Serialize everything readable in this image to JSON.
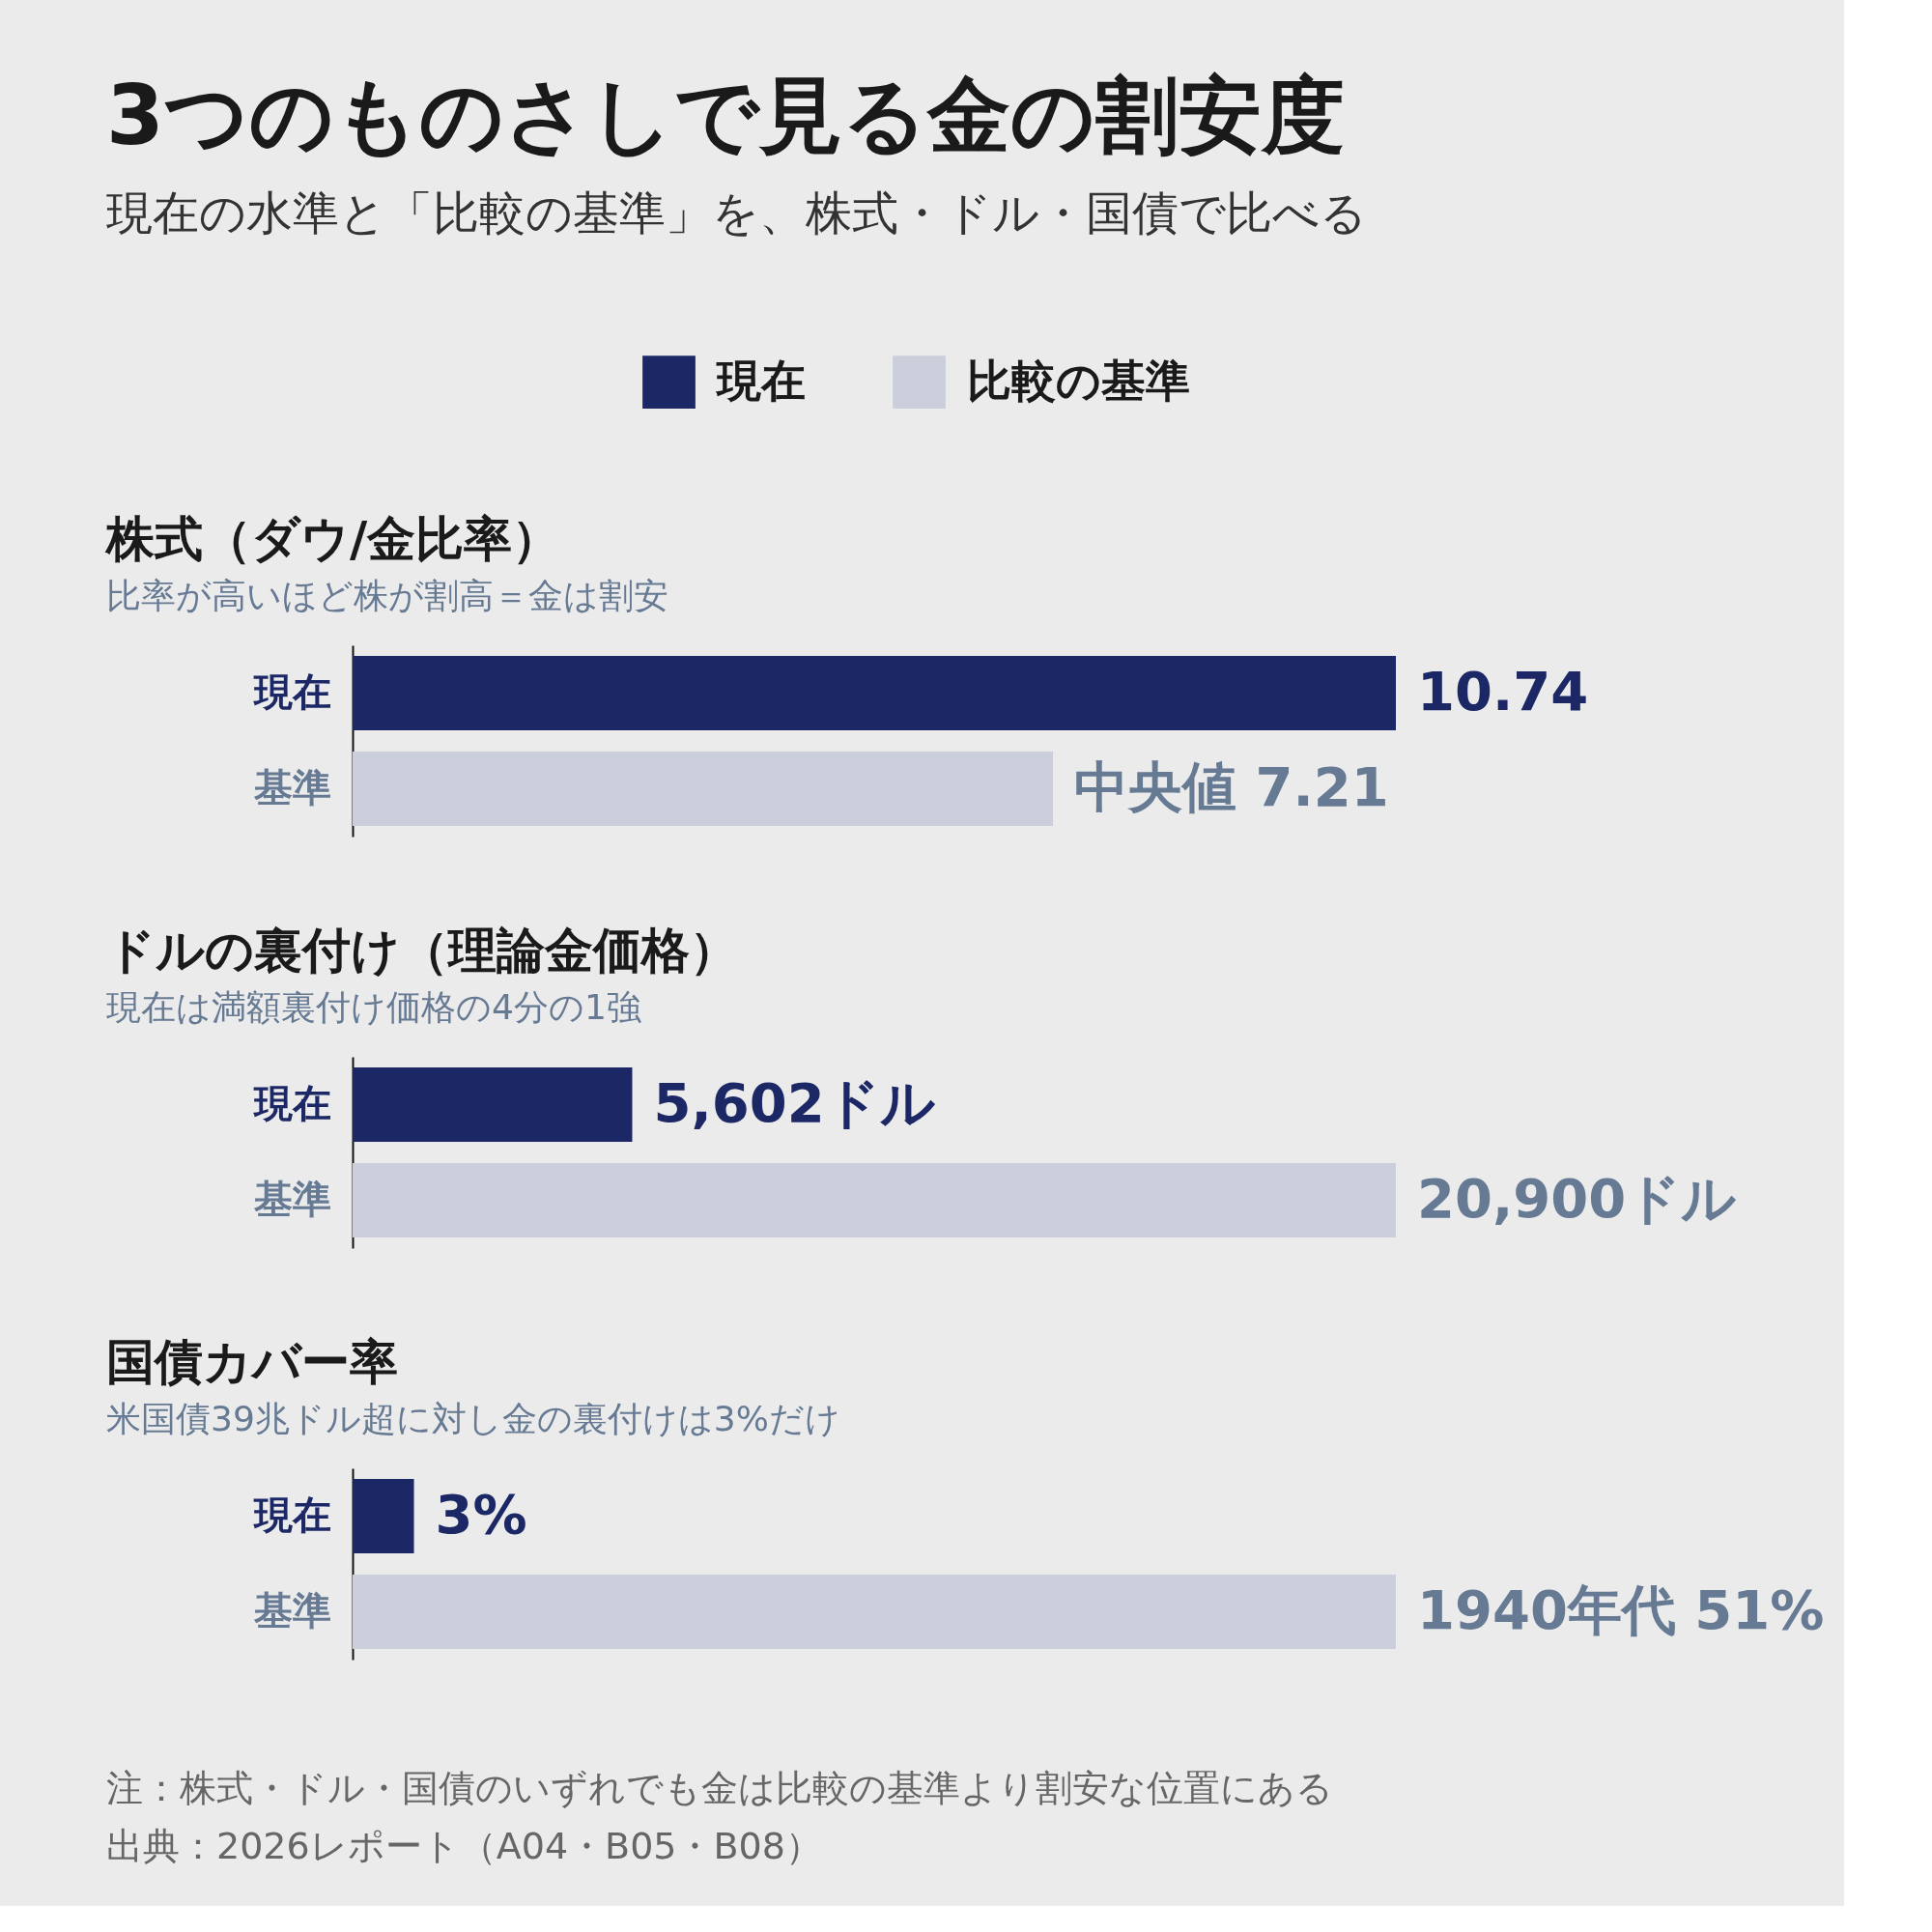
{
  "chart_data": [
    {
      "type": "other",
      "title": "3つのものさしで見る金の割安度",
      "subtitle": "現在の水準と「比較の基準」を、株式・ドル・国債で比べる"
    },
    {
      "type": "bar",
      "orientation": "horizontal",
      "title": "株式（ダウ/金比率）",
      "subtitle": "比率が高いほど株が割高＝金は割安",
      "legend": "top",
      "categories": [
        "現在",
        "基準"
      ],
      "xlim": [
        0,
        10.74
      ],
      "series": [
        {
          "name": "現在",
          "color": "#1c2866",
          "values": [
            10.74,
            null
          ],
          "value_labels": [
            "10.74",
            null
          ]
        },
        {
          "name": "比較の基準",
          "color": "#cbcfdb",
          "values": [
            null,
            7.21
          ],
          "value_labels": [
            null,
            "中央値 7.21"
          ]
        }
      ]
    },
    {
      "type": "bar",
      "orientation": "horizontal",
      "title": "ドルの裏付け（理論金価格）",
      "subtitle": "現在は満額裏付け価格の4分の1強",
      "categories": [
        "現在",
        "基準"
      ],
      "xlim": [
        0,
        20900
      ],
      "series": [
        {
          "color": "#1c2866",
          "values": [
            5602,
            null
          ],
          "value_labels": [
            "5,602ドル",
            null
          ]
        },
        {
          "color": "#cbcfdb",
          "values": [
            null,
            20900
          ],
          "value_labels": [
            null,
            "20,900ドル"
          ]
        }
      ]
    },
    {
      "type": "bar",
      "orientation": "horizontal",
      "title": "国債カバー率",
      "subtitle": "米国債39兆ドル超に対し金の裏付けは3%だけ",
      "categories": [
        "現在",
        "基準"
      ],
      "xlim": [
        0,
        51
      ],
      "series": [
        {
          "color": "#1c2866",
          "values": [
            3,
            null
          ],
          "value_labels": [
            "3%",
            null
          ]
        },
        {
          "color": "#cbcfdb",
          "values": [
            null,
            51
          ],
          "value_labels": [
            null,
            "1940年代 51%"
          ]
        }
      ]
    },
    {
      "type": "other",
      "annotations": [
        "注：株式・ドル・国債のいずれでも金は比較の基準より割安な位置にある",
        "出典：2026レポート（A04・B05・B08）"
      ]
    }
  ]
}
